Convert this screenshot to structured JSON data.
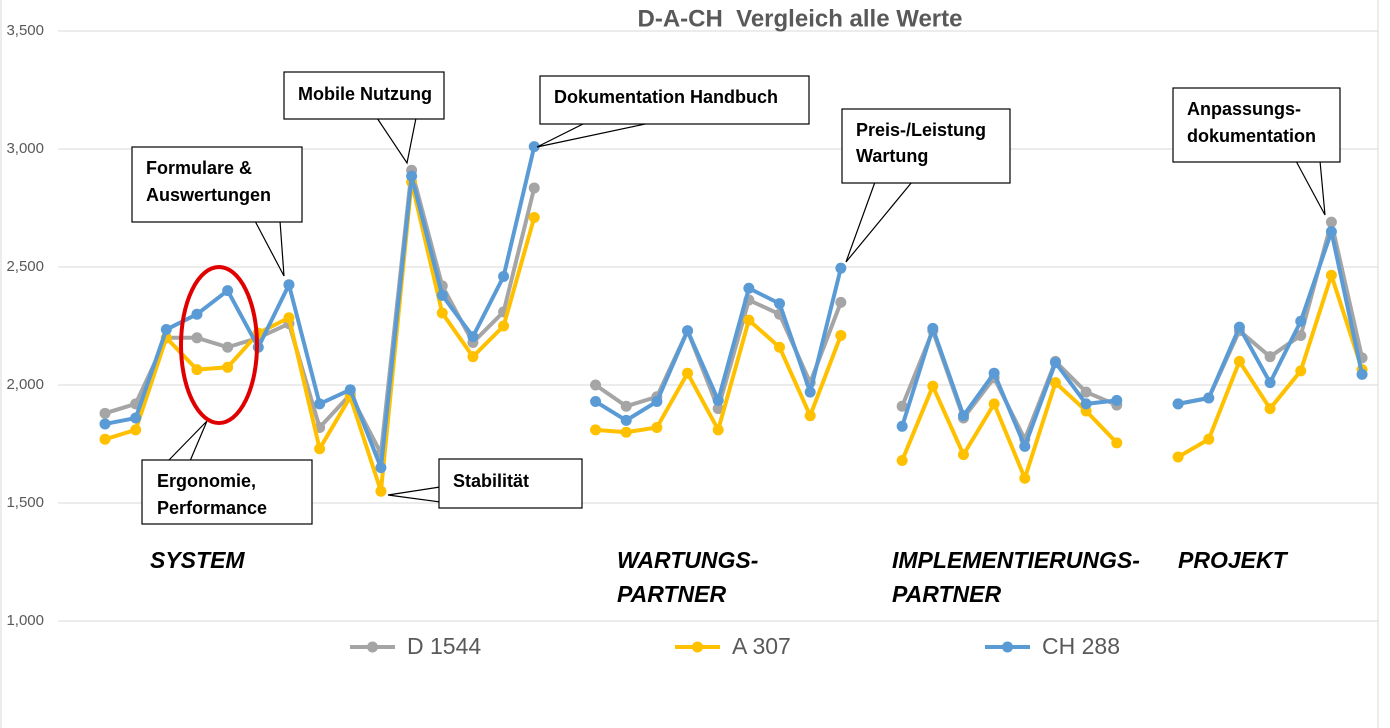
{
  "chart_data": {
    "type": "line",
    "title": "D-A-CH  Vergleich alle Werte",
    "categories": [
      null,
      null,
      null,
      null,
      null,
      null,
      null,
      null,
      null,
      null,
      null,
      null,
      null,
      null,
      null,
      null,
      null,
      null,
      null,
      null,
      null,
      null,
      null,
      null,
      null,
      null,
      null,
      null,
      null,
      null,
      null,
      null,
      null,
      null,
      null,
      null,
      null,
      null,
      null,
      null,
      null,
      null
    ],
    "series": [
      {
        "name": "D 1544",
        "color": "#a5a5a5",
        "values": [
          1880,
          1920,
          2200,
          2200,
          2160,
          2200,
          2260,
          1820,
          1960,
          1710,
          2910,
          2420,
          2180,
          2310,
          2835,
          null,
          2000,
          1910,
          1950,
          2230,
          1900,
          2360,
          2300,
          2010,
          2350,
          null,
          1910,
          2230,
          1860,
          2030,
          1770,
          2100,
          1970,
          1915,
          null,
          1920,
          1945,
          2230,
          2120,
          2210,
          2690,
          2115
        ]
      },
      {
        "name": "A 307",
        "color": "#ffc000",
        "values": [
          1770,
          1810,
          2200,
          2065,
          2075,
          2220,
          2285,
          1730,
          1950,
          1550,
          2860,
          2305,
          2120,
          2250,
          2710,
          null,
          1810,
          1800,
          1820,
          2050,
          1810,
          2275,
          2160,
          1870,
          2210,
          null,
          1680,
          1995,
          1705,
          1920,
          1605,
          2010,
          1890,
          1755,
          null,
          1695,
          1770,
          2100,
          1900,
          2060,
          2465,
          2065
        ]
      },
      {
        "name": "CH 288",
        "color": "#5b9bd5",
        "values": [
          1835,
          1860,
          2235,
          2300,
          2400,
          2160,
          2425,
          1920,
          1980,
          1650,
          2885,
          2380,
          2205,
          2460,
          3010,
          null,
          1930,
          1850,
          1930,
          2230,
          1935,
          2410,
          2345,
          1970,
          2495,
          null,
          1825,
          2240,
          1870,
          2050,
          1740,
          2095,
          1920,
          1935,
          null,
          1920,
          1945,
          2245,
          2010,
          2270,
          2650,
          2045
        ]
      }
    ],
    "ylim": [
      1000,
      3500
    ],
    "yticks": [
      {
        "value": 1000,
        "label": "1,000"
      },
      {
        "value": 1500,
        "label": "1,500"
      },
      {
        "value": 2000,
        "label": "2,000"
      },
      {
        "value": 2500,
        "label": "2,500"
      },
      {
        "value": 3000,
        "label": "3,000"
      },
      {
        "value": 3500,
        "label": "3,500"
      }
    ],
    "grid": true,
    "annotations": [
      {
        "lines": [
          "Formulare &",
          "Auswertungen"
        ]
      },
      {
        "lines": [
          "Mobile Nutzung"
        ]
      },
      {
        "lines": [
          "Dokumentation Handbuch"
        ]
      },
      {
        "lines": [
          "Preis-/Leistung",
          "Wartung"
        ]
      },
      {
        "lines": [
          "Anpassungs-",
          "dokumentation"
        ]
      },
      {
        "lines": [
          "Ergonomie,",
          "Performance"
        ]
      },
      {
        "lines": [
          "Stabilität"
        ]
      }
    ],
    "sections": [
      {
        "lines": [
          "SYSTEM"
        ]
      },
      {
        "lines": [
          "WARTUNGS-",
          "PARTNER"
        ]
      },
      {
        "lines": [
          "IMPLEMENTIERUNGS-",
          "PARTNER"
        ]
      },
      {
        "lines": [
          "PROJEKT"
        ]
      }
    ]
  }
}
